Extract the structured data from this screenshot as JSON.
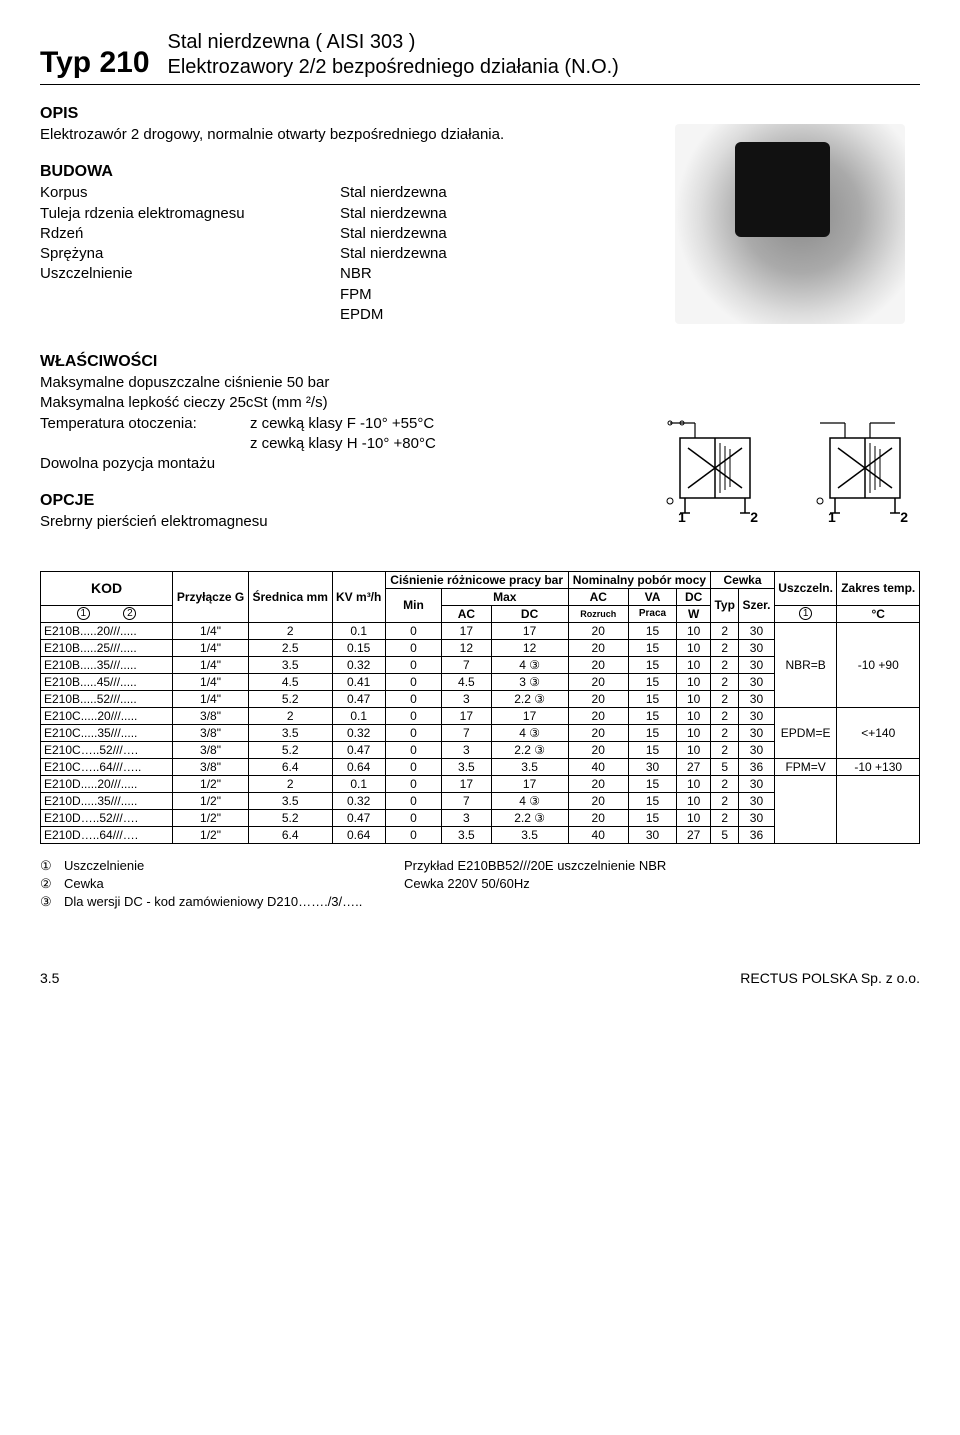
{
  "header": {
    "type_label": "Typ 210",
    "line1": "Stal nierdzewna ( AISI 303 )",
    "line2": "Elektrozawory 2/2 bezpośredniego działania (N.O.)"
  },
  "opis": {
    "title": "OPIS",
    "body": "Elektrozawór 2 drogowy, normalnie otwarty bezpośredniego działania."
  },
  "budowa": {
    "title": "BUDOWA",
    "rows": [
      {
        "k": "Korpus",
        "v": "Stal nierdzewna"
      },
      {
        "k": "Tuleja rdzenia elektromagnesu",
        "v": "Stal nierdzewna"
      },
      {
        "k": "Rdzeń",
        "v": "Stal nierdzewna"
      },
      {
        "k": "Sprężyna",
        "v": "Stal nierdzewna"
      },
      {
        "k": "Uszczelnienie",
        "v": "NBR"
      },
      {
        "k": "",
        "v": "FPM"
      },
      {
        "k": "",
        "v": "EPDM"
      }
    ]
  },
  "wlasciwosci": {
    "title": "WŁAŚCIWOŚCI",
    "l1": "Maksymalne dopuszczalne ciśnienie 50 bar",
    "l2": "Maksymalna lepkość cieczy 25cSt (mm ²/s)",
    "l3k": "Temperatura otoczenia:",
    "l3v": "z cewką klasy F -10° +55°C",
    "l4v": "z cewką klasy H -10° +80°C",
    "l5": "Dowolna pozycja montażu"
  },
  "opcje": {
    "title": "OPCJE",
    "body": "Srebrny pierścień elektromagnesu"
  },
  "symbols": {
    "p1": "1",
    "p2": "2"
  },
  "table": {
    "head": {
      "kod": "KOD",
      "przylacze": "Przyłącze G",
      "srednica": "Średnica mm",
      "kv": "KV m³/h",
      "cisnienie": "Ciśnienie różnicowe pracy bar",
      "min": "Min",
      "max": "Max",
      "ac": "AC",
      "dc": "DC",
      "nominalny": "Nominalny pobór mocy",
      "va": "VA",
      "rozruch": "Rozruch",
      "praca": "Praca",
      "w": "W",
      "cewka": "Cewka",
      "typ": "Typ",
      "szer": "Szer.",
      "uszczeln": "Uszczeln.",
      "zakres": "Zakres temp.",
      "degc": "°C",
      "c1": "1",
      "c2": "2"
    },
    "rows": [
      {
        "kod": "E210B.....20///.....",
        "g": "1/4\"",
        "d": "2",
        "kv": "0.1",
        "min": "0",
        "maxac": "17",
        "maxdc": "17",
        "r": "20",
        "p": "15",
        "w": "10",
        "typ": "2",
        "sz": "30"
      },
      {
        "kod": "E210B.....25///.....",
        "g": "1/4\"",
        "d": "2.5",
        "kv": "0.15",
        "min": "0",
        "maxac": "12",
        "maxdc": "12",
        "r": "20",
        "p": "15",
        "w": "10",
        "typ": "2",
        "sz": "30"
      },
      {
        "kod": "E210B.....35///.....",
        "g": "1/4\"",
        "d": "3.5",
        "kv": "0.32",
        "min": "0",
        "maxac": "7",
        "maxdc": "4 ③",
        "r": "20",
        "p": "15",
        "w": "10",
        "typ": "2",
        "sz": "30"
      },
      {
        "kod": "E210B.....45///.....",
        "g": "1/4\"",
        "d": "4.5",
        "kv": "0.41",
        "min": "0",
        "maxac": "4.5",
        "maxdc": "3 ③",
        "r": "20",
        "p": "15",
        "w": "10",
        "typ": "2",
        "sz": "30"
      },
      {
        "kod": "E210B.....52///.....",
        "g": "1/4\"",
        "d": "5.2",
        "kv": "0.47",
        "min": "0",
        "maxac": "3",
        "maxdc": "2.2 ③",
        "r": "20",
        "p": "15",
        "w": "10",
        "typ": "2",
        "sz": "30"
      },
      {
        "kod": "E210C.....20///.....",
        "g": "3/8\"",
        "d": "2",
        "kv": "0.1",
        "min": "0",
        "maxac": "17",
        "maxdc": "17",
        "r": "20",
        "p": "15",
        "w": "10",
        "typ": "2",
        "sz": "30"
      },
      {
        "kod": "E210C.....35///.....",
        "g": "3/8\"",
        "d": "3.5",
        "kv": "0.32",
        "min": "0",
        "maxac": "7",
        "maxdc": "4 ③",
        "r": "20",
        "p": "15",
        "w": "10",
        "typ": "2",
        "sz": "30"
      },
      {
        "kod": "E210C…..52///….",
        "g": "3/8\"",
        "d": "5.2",
        "kv": "0.47",
        "min": "0",
        "maxac": "3",
        "maxdc": "2.2 ③",
        "r": "20",
        "p": "15",
        "w": "10",
        "typ": "2",
        "sz": "30"
      },
      {
        "kod": "E210C…..64///…..",
        "g": "3/8\"",
        "d": "6.4",
        "kv": "0.64",
        "min": "0",
        "maxac": "3.5",
        "maxdc": "3.5",
        "r": "40",
        "p": "30",
        "w": "27",
        "typ": "5",
        "sz": "36"
      },
      {
        "kod": "E210D.....20///.....",
        "g": "1/2\"",
        "d": "2",
        "kv": "0.1",
        "min": "0",
        "maxac": "17",
        "maxdc": "17",
        "r": "20",
        "p": "15",
        "w": "10",
        "typ": "2",
        "sz": "30"
      },
      {
        "kod": "E210D.....35///.....",
        "g": "1/2\"",
        "d": "3.5",
        "kv": "0.32",
        "min": "0",
        "maxac": "7",
        "maxdc": "4 ③",
        "r": "20",
        "p": "15",
        "w": "10",
        "typ": "2",
        "sz": "30"
      },
      {
        "kod": "E210D…..52///….",
        "g": "1/2\"",
        "d": "5.2",
        "kv": "0.47",
        "min": "0",
        "maxac": "3",
        "maxdc": "2.2 ③",
        "r": "20",
        "p": "15",
        "w": "10",
        "typ": "2",
        "sz": "30"
      },
      {
        "kod": "E210D…..64///….",
        "g": "1/2\"",
        "d": "6.4",
        "kv": "0.64",
        "min": "0",
        "maxac": "3.5",
        "maxdc": "3.5",
        "r": "40",
        "p": "30",
        "w": "27",
        "typ": "5",
        "sz": "36"
      }
    ],
    "right_groups": [
      {
        "uszcz": "NBR=B",
        "temp": "-10 +90",
        "span": 5
      },
      {
        "uszcz": "EPDM=E",
        "temp": "<+140",
        "span": 3
      },
      {
        "uszcz": "FPM=V",
        "temp": "-10 +130",
        "span": 1
      },
      {
        "uszcz": "",
        "temp": "",
        "span": 4,
        "blank": true
      }
    ]
  },
  "footnotes": {
    "n1": "①",
    "n2": "②",
    "n3": "③",
    "f1a": "Uszczelnienie",
    "f1b": "Przykład E210BB52///20E  uszczelnienie NBR",
    "f2a": "Cewka",
    "f2b": "Cewka  220V 50/60Hz",
    "f3a": "Dla wersji DC - kod zamówieniowy  D210……./3/….."
  },
  "footer": {
    "page": "3.5",
    "company": "RECTUS POLSKA Sp. z o.o."
  },
  "style": {
    "accent": "#000000",
    "bg": "#ffffff"
  }
}
